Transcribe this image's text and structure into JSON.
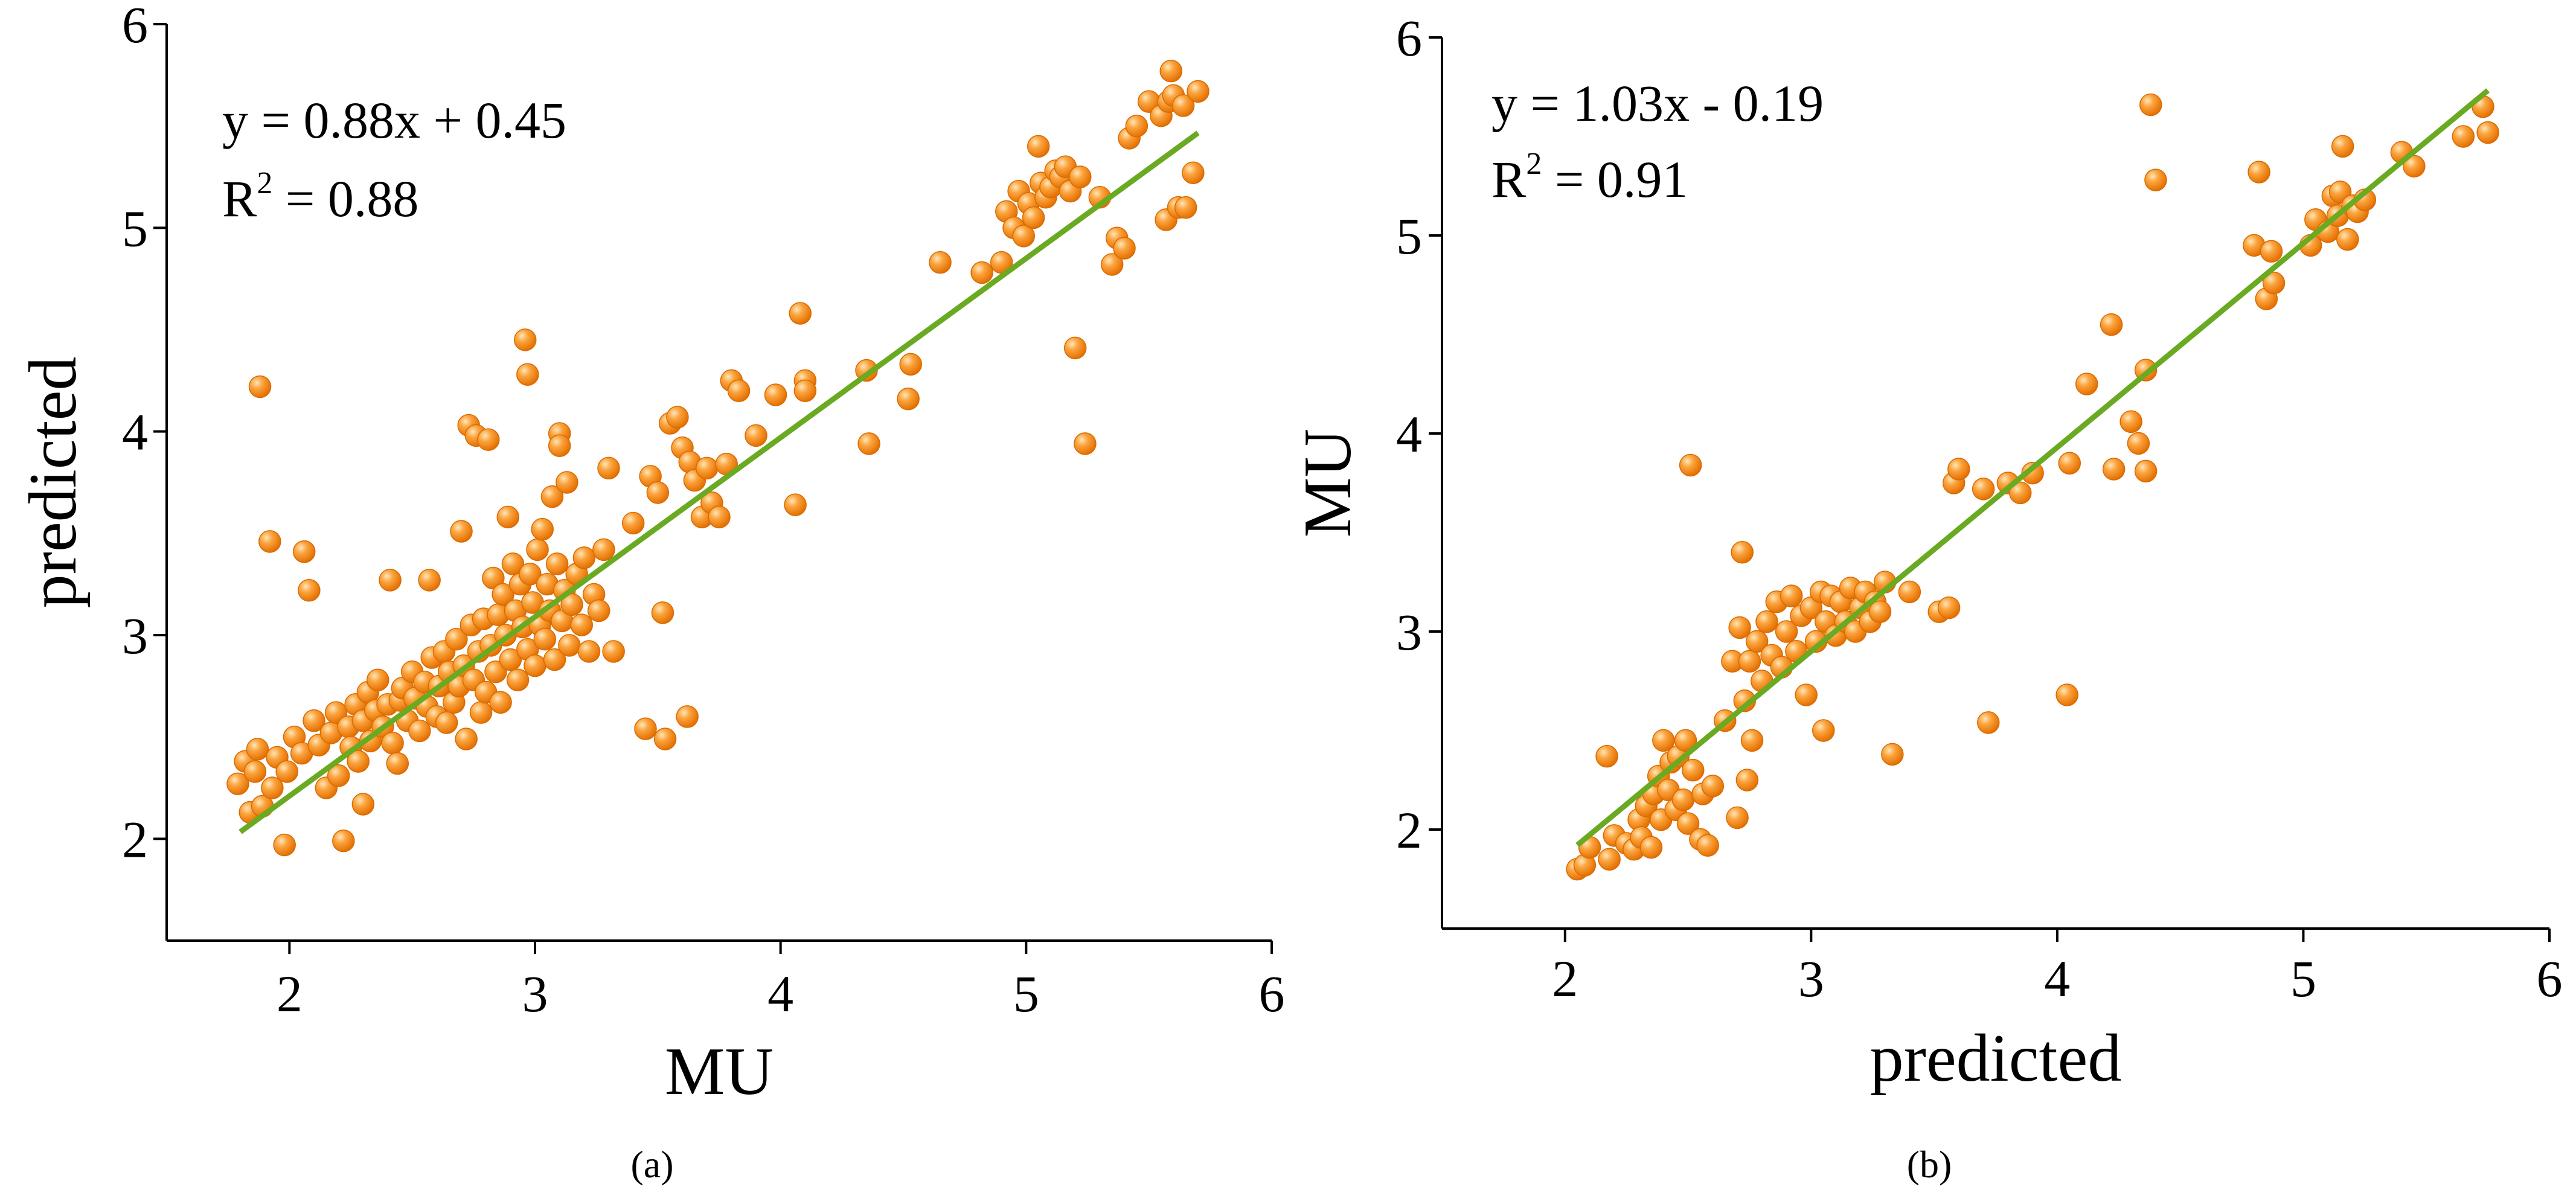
{
  "chart_data": [
    {
      "type": "scatter",
      "caption": "(a)",
      "xlabel": "MU",
      "ylabel": "predicted",
      "xlim": [
        1.5,
        6
      ],
      "ylim": [
        1.5,
        6
      ],
      "xticks": [
        "2",
        "3",
        "4",
        "5",
        "6"
      ],
      "yticks": [
        "2",
        "3",
        "4",
        "5",
        "6"
      ],
      "equation": "y = 0.88x + 0.45",
      "r2_label": "R",
      "r2_value": " = 0.88",
      "fit": {
        "slope": 0.88,
        "intercept": 0.45,
        "x_range": [
          1.8,
          5.7
        ]
      },
      "point_color": "#f58a0b",
      "line_color": "#6aaa22",
      "points": [
        [
          1.79,
          2.27
        ],
        [
          1.82,
          2.38
        ],
        [
          1.84,
          2.13
        ],
        [
          1.86,
          2.33
        ],
        [
          1.87,
          2.44
        ],
        [
          1.89,
          2.16
        ],
        [
          1.88,
          4.22
        ],
        [
          1.92,
          3.46
        ],
        [
          1.93,
          2.25
        ],
        [
          1.95,
          2.4
        ],
        [
          1.98,
          1.97
        ],
        [
          1.99,
          2.33
        ],
        [
          2.02,
          2.5
        ],
        [
          2.05,
          2.42
        ],
        [
          2.06,
          3.41
        ],
        [
          2.08,
          3.22
        ],
        [
          2.1,
          2.58
        ],
        [
          2.12,
          2.46
        ],
        [
          2.15,
          2.25
        ],
        [
          2.17,
          2.52
        ],
        [
          2.19,
          2.62
        ],
        [
          2.2,
          2.31
        ],
        [
          2.22,
          1.99
        ],
        [
          2.24,
          2.55
        ],
        [
          2.25,
          2.45
        ],
        [
          2.27,
          2.66
        ],
        [
          2.28,
          2.38
        ],
        [
          2.3,
          2.17
        ],
        [
          2.3,
          2.58
        ],
        [
          2.32,
          2.72
        ],
        [
          2.33,
          2.48
        ],
        [
          2.35,
          2.63
        ],
        [
          2.36,
          2.78
        ],
        [
          2.38,
          2.55
        ],
        [
          2.4,
          2.66
        ],
        [
          2.41,
          3.27
        ],
        [
          2.42,
          2.47
        ],
        [
          2.44,
          2.37
        ],
        [
          2.45,
          2.68
        ],
        [
          2.46,
          2.74
        ],
        [
          2.48,
          2.58
        ],
        [
          2.5,
          2.82
        ],
        [
          2.51,
          2.69
        ],
        [
          2.53,
          2.53
        ],
        [
          2.55,
          2.77
        ],
        [
          2.56,
          2.65
        ],
        [
          2.57,
          3.27
        ],
        [
          2.58,
          2.89
        ],
        [
          2.6,
          2.6
        ],
        [
          2.61,
          2.75
        ],
        [
          2.63,
          2.92
        ],
        [
          2.64,
          2.57
        ],
        [
          2.65,
          2.82
        ],
        [
          2.67,
          2.67
        ],
        [
          2.68,
          2.98
        ],
        [
          2.69,
          2.75
        ],
        [
          2.7,
          3.51
        ],
        [
          2.71,
          2.85
        ],
        [
          2.72,
          2.49
        ],
        [
          2.73,
          4.03
        ],
        [
          2.74,
          3.05
        ],
        [
          2.75,
          2.78
        ],
        [
          2.76,
          3.98
        ],
        [
          2.77,
          2.92
        ],
        [
          2.78,
          2.62
        ],
        [
          2.79,
          3.08
        ],
        [
          2.8,
          2.72
        ],
        [
          2.81,
          3.96
        ],
        [
          2.82,
          2.95
        ],
        [
          2.83,
          3.28
        ],
        [
          2.84,
          2.82
        ],
        [
          2.85,
          3.1
        ],
        [
          2.86,
          2.67
        ],
        [
          2.87,
          3.2
        ],
        [
          2.88,
          3.0
        ],
        [
          2.89,
          3.58
        ],
        [
          2.9,
          2.88
        ],
        [
          2.91,
          3.35
        ],
        [
          2.92,
          3.12
        ],
        [
          2.93,
          2.78
        ],
        [
          2.94,
          3.25
        ],
        [
          2.95,
          3.04
        ],
        [
          2.96,
          4.45
        ],
        [
          2.97,
          4.28
        ],
        [
          2.97,
          2.93
        ],
        [
          2.98,
          3.3
        ],
        [
          2.99,
          3.16
        ],
        [
          3.0,
          2.85
        ],
        [
          3.01,
          3.42
        ],
        [
          3.02,
          3.05
        ],
        [
          3.03,
          3.52
        ],
        [
          3.04,
          2.98
        ],
        [
          3.05,
          3.25
        ],
        [
          3.06,
          3.12
        ],
        [
          3.07,
          3.68
        ],
        [
          3.08,
          2.88
        ],
        [
          3.09,
          3.35
        ],
        [
          3.1,
          3.99
        ],
        [
          3.1,
          3.93
        ],
        [
          3.11,
          3.07
        ],
        [
          3.12,
          3.22
        ],
        [
          3.13,
          3.75
        ],
        [
          3.14,
          2.95
        ],
        [
          3.15,
          3.15
        ],
        [
          3.17,
          3.3
        ],
        [
          3.19,
          3.05
        ],
        [
          3.2,
          3.38
        ],
        [
          3.22,
          2.92
        ],
        [
          3.24,
          3.2
        ],
        [
          3.26,
          3.12
        ],
        [
          3.28,
          3.42
        ],
        [
          3.3,
          3.82
        ],
        [
          3.32,
          2.92
        ],
        [
          3.4,
          3.55
        ],
        [
          3.45,
          2.54
        ],
        [
          3.47,
          3.78
        ],
        [
          3.5,
          3.7
        ],
        [
          3.52,
          3.11
        ],
        [
          3.53,
          2.49
        ],
        [
          3.55,
          4.04
        ],
        [
          3.58,
          4.07
        ],
        [
          3.6,
          3.92
        ],
        [
          3.62,
          2.6
        ],
        [
          3.63,
          3.85
        ],
        [
          3.65,
          3.76
        ],
        [
          3.68,
          3.58
        ],
        [
          3.7,
          3.82
        ],
        [
          3.72,
          3.65
        ],
        [
          3.75,
          3.58
        ],
        [
          3.78,
          3.84
        ],
        [
          3.8,
          4.25
        ],
        [
          3.83,
          4.2
        ],
        [
          3.9,
          3.98
        ],
        [
          3.98,
          4.18
        ],
        [
          4.06,
          3.64
        ],
        [
          4.08,
          4.58
        ],
        [
          4.1,
          4.25
        ],
        [
          4.1,
          4.2
        ],
        [
          4.35,
          4.3
        ],
        [
          4.36,
          3.94
        ],
        [
          4.52,
          4.16
        ],
        [
          4.53,
          4.33
        ],
        [
          4.65,
          4.83
        ],
        [
          4.82,
          4.78
        ],
        [
          4.9,
          4.83
        ],
        [
          4.92,
          5.08
        ],
        [
          4.95,
          5.0
        ],
        [
          4.97,
          5.18
        ],
        [
          4.99,
          4.96
        ],
        [
          5.01,
          5.12
        ],
        [
          5.03,
          5.05
        ],
        [
          5.05,
          5.4
        ],
        [
          5.06,
          5.22
        ],
        [
          5.08,
          5.15
        ],
        [
          5.1,
          5.2
        ],
        [
          5.12,
          5.28
        ],
        [
          5.14,
          5.25
        ],
        [
          5.16,
          5.3
        ],
        [
          5.18,
          5.18
        ],
        [
          5.2,
          4.41
        ],
        [
          5.22,
          5.25
        ],
        [
          5.24,
          3.94
        ],
        [
          5.3,
          5.15
        ],
        [
          5.35,
          4.82
        ],
        [
          5.37,
          4.95
        ],
        [
          5.4,
          4.9
        ],
        [
          5.42,
          5.44
        ],
        [
          5.45,
          5.5
        ],
        [
          5.5,
          5.62
        ],
        [
          5.55,
          5.55
        ],
        [
          5.57,
          5.04
        ],
        [
          5.58,
          5.62
        ],
        [
          5.59,
          5.77
        ],
        [
          5.6,
          5.65
        ],
        [
          5.62,
          5.1
        ],
        [
          5.64,
          5.6
        ],
        [
          5.65,
          5.1
        ],
        [
          5.68,
          5.27
        ],
        [
          5.7,
          5.67
        ]
      ]
    },
    {
      "type": "scatter",
      "caption": "(b)",
      "xlabel": "predicted",
      "ylabel": "MU",
      "xlim": [
        1.5,
        6
      ],
      "ylim": [
        1.5,
        6
      ],
      "xticks": [
        "2",
        "3",
        "4",
        "5",
        "6"
      ],
      "yticks": [
        "2",
        "3",
        "4",
        "5",
        "6"
      ],
      "equation": "y = 1.03x - 0.19",
      "r2_label": "R",
      "r2_value": " = 0.91",
      "fit": {
        "slope": 1.03,
        "intercept": -0.19,
        "x_range": [
          2.05,
          5.75
        ]
      },
      "point_color": "#f58a0b",
      "line_color": "#6aaa22",
      "points": [
        [
          2.05,
          1.8
        ],
        [
          2.08,
          1.82
        ],
        [
          2.1,
          1.91
        ],
        [
          2.17,
          2.37
        ],
        [
          2.18,
          1.85
        ],
        [
          2.2,
          1.97
        ],
        [
          2.25,
          1.93
        ],
        [
          2.28,
          1.9
        ],
        [
          2.3,
          2.05
        ],
        [
          2.31,
          1.96
        ],
        [
          2.33,
          2.12
        ],
        [
          2.35,
          1.91
        ],
        [
          2.36,
          2.18
        ],
        [
          2.38,
          2.27
        ],
        [
          2.39,
          2.05
        ],
        [
          2.4,
          2.45
        ],
        [
          2.42,
          2.2
        ],
        [
          2.43,
          2.34
        ],
        [
          2.45,
          2.1
        ],
        [
          2.46,
          2.37
        ],
        [
          2.48,
          2.15
        ],
        [
          2.49,
          2.45
        ],
        [
          2.5,
          2.03
        ],
        [
          2.51,
          3.84
        ],
        [
          2.52,
          2.3
        ],
        [
          2.55,
          1.95
        ],
        [
          2.56,
          2.18
        ],
        [
          2.58,
          1.92
        ],
        [
          2.6,
          2.22
        ],
        [
          2.65,
          2.55
        ],
        [
          2.68,
          2.85
        ],
        [
          2.7,
          2.06
        ],
        [
          2.71,
          3.02
        ],
        [
          2.72,
          3.4
        ],
        [
          2.73,
          2.65
        ],
        [
          2.74,
          2.25
        ],
        [
          2.75,
          2.85
        ],
        [
          2.76,
          2.45
        ],
        [
          2.78,
          2.95
        ],
        [
          2.8,
          2.75
        ],
        [
          2.82,
          3.05
        ],
        [
          2.84,
          2.88
        ],
        [
          2.86,
          3.15
        ],
        [
          2.88,
          2.82
        ],
        [
          2.9,
          3.0
        ],
        [
          2.92,
          3.18
        ],
        [
          2.94,
          2.9
        ],
        [
          2.96,
          3.08
        ],
        [
          2.98,
          2.68
        ],
        [
          3.0,
          3.12
        ],
        [
          3.02,
          2.95
        ],
        [
          3.04,
          3.2
        ],
        [
          3.05,
          2.5
        ],
        [
          3.06,
          3.05
        ],
        [
          3.08,
          3.18
        ],
        [
          3.1,
          2.98
        ],
        [
          3.12,
          3.15
        ],
        [
          3.14,
          3.05
        ],
        [
          3.16,
          3.22
        ],
        [
          3.18,
          3.0
        ],
        [
          3.2,
          3.12
        ],
        [
          3.22,
          3.2
        ],
        [
          3.24,
          3.05
        ],
        [
          3.26,
          3.15
        ],
        [
          3.28,
          3.1
        ],
        [
          3.3,
          3.25
        ],
        [
          3.33,
          2.38
        ],
        [
          3.4,
          3.2
        ],
        [
          3.52,
          3.1
        ],
        [
          3.56,
          3.12
        ],
        [
          3.58,
          3.75
        ],
        [
          3.6,
          3.82
        ],
        [
          3.7,
          3.72
        ],
        [
          3.72,
          2.54
        ],
        [
          3.8,
          3.75
        ],
        [
          3.85,
          3.7
        ],
        [
          3.9,
          3.8
        ],
        [
          4.04,
          2.68
        ],
        [
          4.05,
          3.85
        ],
        [
          4.12,
          4.25
        ],
        [
          4.22,
          4.55
        ],
        [
          4.23,
          3.82
        ],
        [
          4.3,
          4.06
        ],
        [
          4.33,
          3.95
        ],
        [
          4.36,
          4.32
        ],
        [
          4.36,
          3.81
        ],
        [
          4.38,
          5.66
        ],
        [
          4.4,
          5.28
        ],
        [
          4.8,
          4.95
        ],
        [
          4.82,
          5.32
        ],
        [
          4.85,
          4.68
        ],
        [
          4.87,
          4.92
        ],
        [
          4.88,
          4.76
        ],
        [
          5.03,
          4.95
        ],
        [
          5.05,
          5.08
        ],
        [
          5.1,
          5.02
        ],
        [
          5.12,
          5.2
        ],
        [
          5.14,
          5.1
        ],
        [
          5.15,
          5.22
        ],
        [
          5.16,
          5.45
        ],
        [
          5.18,
          4.98
        ],
        [
          5.2,
          5.15
        ],
        [
          5.22,
          5.12
        ],
        [
          5.25,
          5.18
        ],
        [
          5.4,
          5.42
        ],
        [
          5.45,
          5.35
        ],
        [
          5.65,
          5.5
        ],
        [
          5.73,
          5.65
        ],
        [
          5.75,
          5.52
        ]
      ]
    }
  ]
}
